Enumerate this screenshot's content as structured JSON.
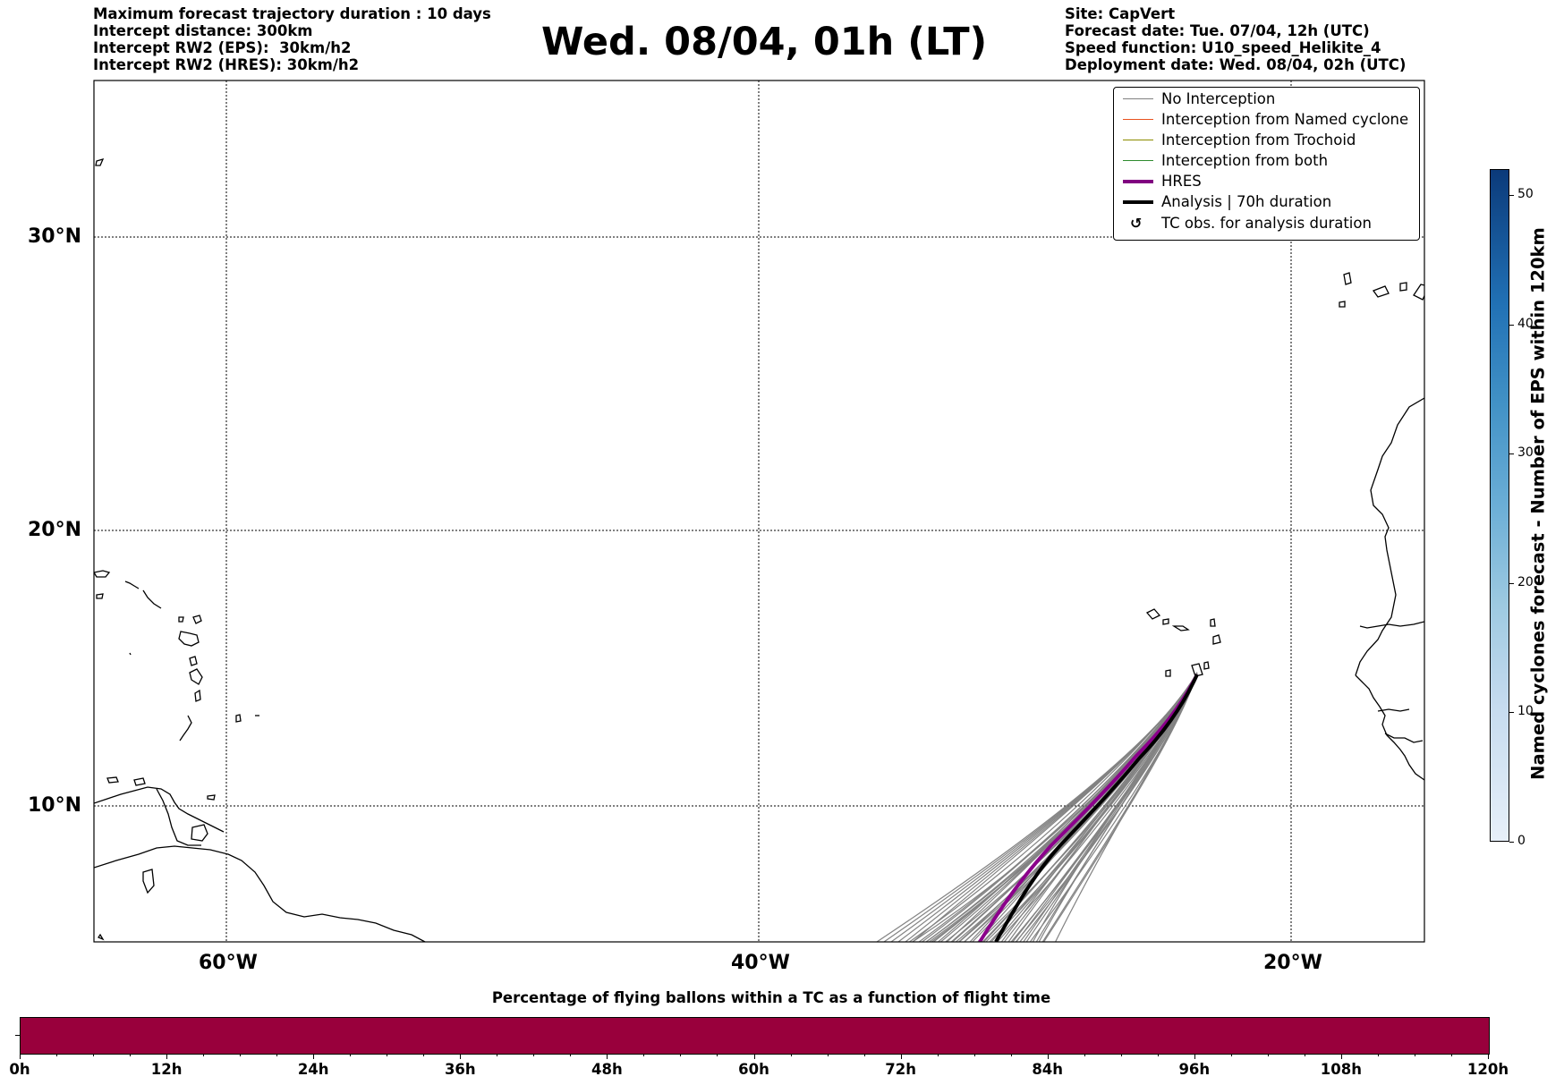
{
  "header": {
    "left_lines": [
      "Maximum forecast trajectory duration : 10 days",
      "Intercept distance: 300km",
      "Intercept RW2 (EPS):  30km/h2",
      "Intercept RW2 (HRES): 30km/h2"
    ],
    "title": "Wed. 08/04, 01h (LT)",
    "right_lines": [
      "Site: CapVert",
      "Forecast date: Tue. 07/04, 12h (UTC)",
      "Speed function: U10_speed_Helikite_4",
      "Deployment date: Wed. 08/04, 02h (UTC)"
    ]
  },
  "map": {
    "lat_labels": [
      "30°N",
      "20°N",
      "10°N"
    ],
    "lon_labels": [
      "60°W",
      "40°W",
      "20°W"
    ],
    "colors": {
      "ensemble": "#6e6e6e",
      "hres": "#8b008b",
      "analysis": "#000000",
      "coast": "#000000"
    }
  },
  "legend": {
    "items": [
      {
        "label": "No Interception",
        "color": "#808080",
        "width": 1.2
      },
      {
        "label": "Interception from Named cyclone",
        "color": "#e8521e",
        "width": 1.2
      },
      {
        "label": "Interception from Trochoid",
        "color": "#8b8b00",
        "width": 1.2
      },
      {
        "label": "Interception from both",
        "color": "#2e8b2e",
        "width": 1.2
      },
      {
        "label": "HRES",
        "color": "#800080",
        "width": 4
      },
      {
        "label": "Analysis | 70h duration",
        "color": "#000000",
        "width": 4
      }
    ],
    "marker_item": {
      "label": "TC obs. for analysis duration",
      "icon": "cyclone-symbol-icon",
      "glyph": "↺"
    }
  },
  "colorbar": {
    "label": "Named cyclones forecast - Number of EPS within 120km",
    "ticks": [
      "0",
      "10",
      "20",
      "30",
      "40",
      "50"
    ],
    "range": [
      0,
      52
    ],
    "colors": {
      "low": "#e7f0f9",
      "high": "#0b3a7a"
    }
  },
  "flight_bar": {
    "title": "Percentage of flying ballons within a TC as a function of flight time",
    "ticks": [
      "0h",
      "12h",
      "24h",
      "36h",
      "48h",
      "60h",
      "72h",
      "84h",
      "96h",
      "108h",
      "120h"
    ],
    "color": "#99003c"
  }
}
